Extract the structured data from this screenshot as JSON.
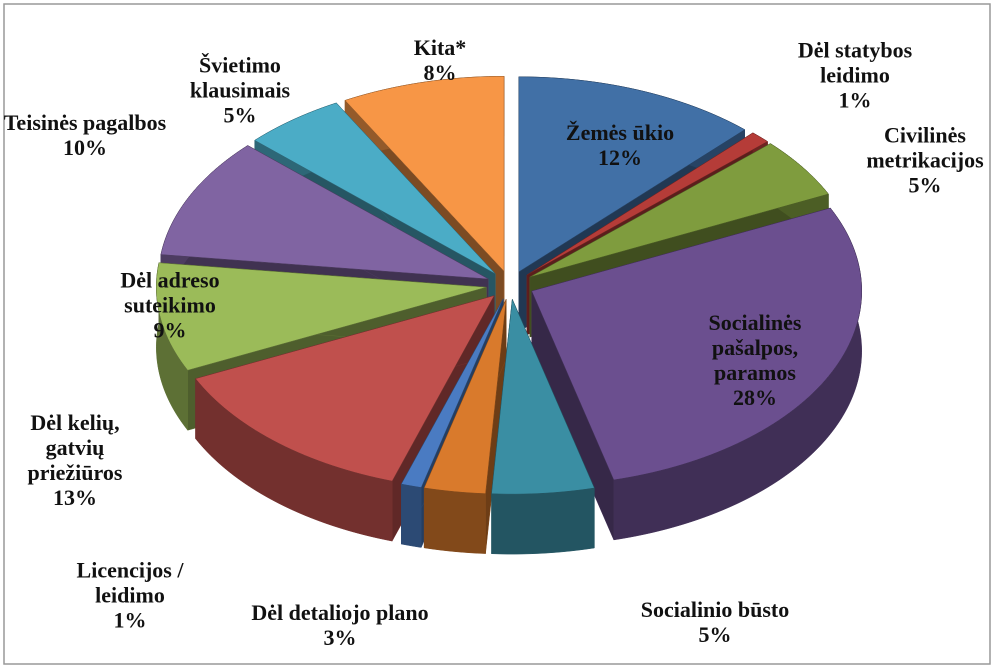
{
  "chart_data": {
    "type": "pie3d",
    "categories": [
      "Žemės ūkio",
      "Dėl statybos leidimo",
      "Civilinės metrikacijos",
      "Socialinės pašalpos, paramos",
      "Socialinio būsto",
      "Dėl detaliojo plano",
      "Licencijos / leidimo",
      "Dėl kelių, gatvių priežiūros",
      "Dėl adreso suteikimo",
      "Teisinės pagalbos",
      "Švietimo klausimais",
      "Kita*"
    ],
    "values": [
      12,
      1,
      5,
      28,
      5,
      3,
      1,
      13,
      9,
      10,
      5,
      8
    ],
    "value_labels": [
      "12%",
      "1%",
      "5%",
      "28%",
      "5%",
      "3%",
      "1%",
      "13%",
      "9%",
      "10%",
      "5%",
      "8%"
    ],
    "colors": [
      "#4170a6",
      "#b53c38",
      "#7f9c3e",
      "#6b4f8f",
      "#3a8ea3",
      "#d97a2c",
      "#4a7bc2",
      "#c0504d",
      "#9bbb59",
      "#8064a2",
      "#4bacc6",
      "#f79646"
    ]
  }
}
